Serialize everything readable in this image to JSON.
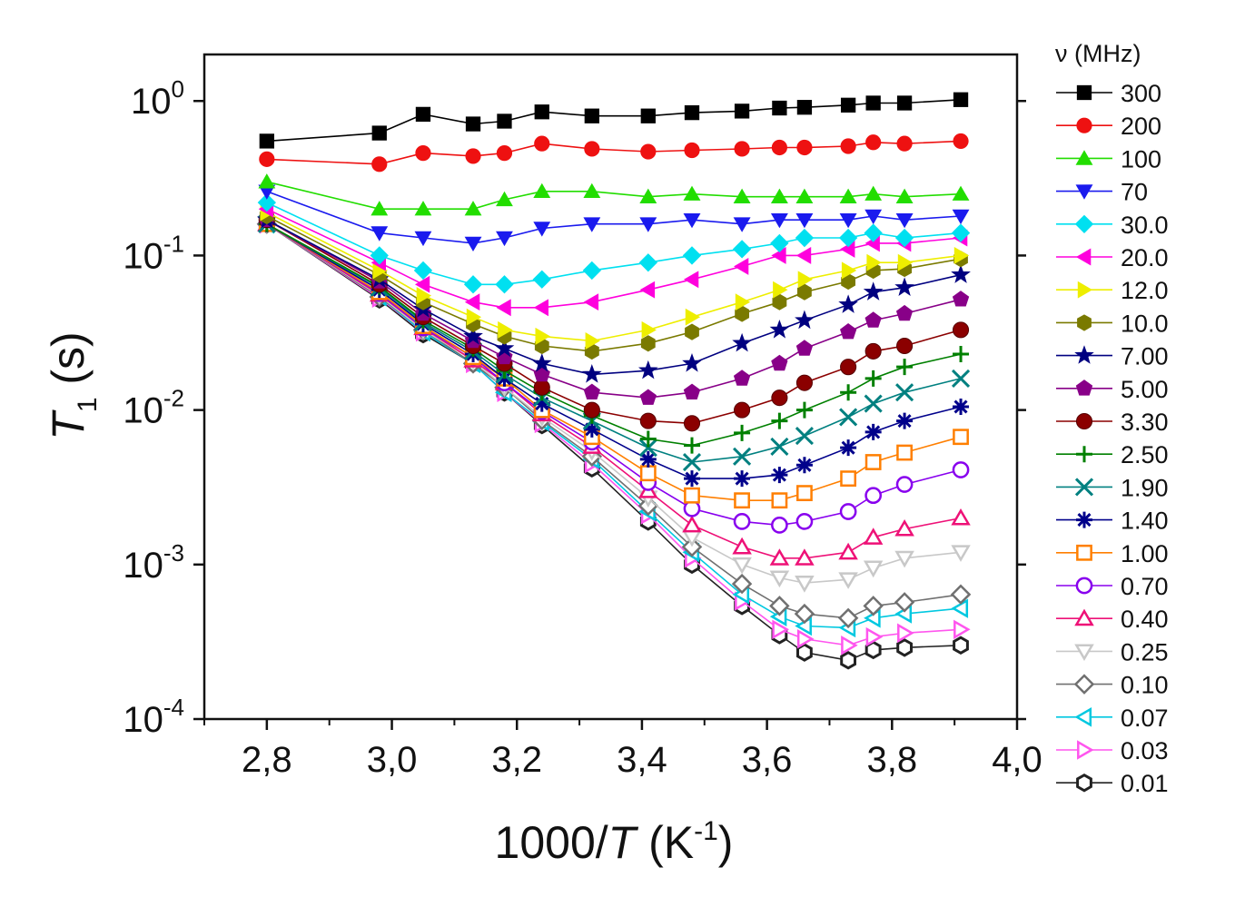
{
  "chart_data": {
    "type": "scatter",
    "xlabel": {
      "main": "1000/",
      "italic": "T",
      "unit_pre": " (K",
      "unit_sup": "-1",
      "unit_post": ")"
    },
    "ylabel": {
      "italic": "T",
      "sub": "1",
      "unit": " (s)"
    },
    "xlim": [
      2.7,
      4.0
    ],
    "ylim": [
      0.0001,
      2
    ],
    "yscale": "log",
    "grid": false,
    "legend_position": "right",
    "legend_title": "ν (MHz)",
    "x_ticks": [
      "2,8",
      "3,0",
      "3,2",
      "3,4",
      "3,6",
      "3,8",
      "4,0"
    ],
    "x_tick_values": [
      2.8,
      3.0,
      3.2,
      3.4,
      3.6,
      3.8,
      4.0
    ],
    "y_ticks": [
      {
        "value": 1,
        "base": "10",
        "exp": "0"
      },
      {
        "value": 0.1,
        "base": "10",
        "exp": "-1"
      },
      {
        "value": 0.01,
        "base": "10",
        "exp": "-2"
      },
      {
        "value": 0.001,
        "base": "10",
        "exp": "-3"
      },
      {
        "value": 0.0001,
        "base": "10",
        "exp": "-4"
      }
    ],
    "x": [
      2.8,
      2.98,
      3.05,
      3.13,
      3.18,
      3.24,
      3.32,
      3.41,
      3.48,
      3.56,
      3.62,
      3.66,
      3.73,
      3.77,
      3.82,
      3.91
    ],
    "series": [
      {
        "name": "300",
        "color": "#000000",
        "marker": "square-filled",
        "values": [
          0.55,
          0.62,
          0.82,
          0.71,
          0.74,
          0.85,
          0.8,
          0.8,
          0.84,
          0.86,
          0.9,
          0.91,
          0.94,
          0.97,
          0.97,
          1.02
        ]
      },
      {
        "name": "200",
        "color": "#ee1111",
        "marker": "circle-filled",
        "values": [
          0.42,
          0.39,
          0.46,
          0.44,
          0.46,
          0.53,
          0.49,
          0.47,
          0.48,
          0.49,
          0.5,
          0.5,
          0.51,
          0.54,
          0.53,
          0.55
        ]
      },
      {
        "name": "100",
        "color": "#22dd00",
        "marker": "triangle-up-filled",
        "values": [
          0.3,
          0.2,
          0.2,
          0.2,
          0.23,
          0.26,
          0.26,
          0.24,
          0.25,
          0.24,
          0.24,
          0.24,
          0.24,
          0.25,
          0.24,
          0.25
        ]
      },
      {
        "name": "70",
        "color": "#1a1aee",
        "marker": "triangle-down-filled",
        "values": [
          0.26,
          0.14,
          0.13,
          0.12,
          0.13,
          0.15,
          0.16,
          0.16,
          0.17,
          0.16,
          0.17,
          0.17,
          0.17,
          0.18,
          0.17,
          0.18
        ]
      },
      {
        "name": "30.0",
        "color": "#00e0f0",
        "marker": "diamond-filled",
        "values": [
          0.22,
          0.1,
          0.08,
          0.065,
          0.065,
          0.07,
          0.08,
          0.09,
          0.1,
          0.11,
          0.12,
          0.13,
          0.13,
          0.14,
          0.13,
          0.14
        ]
      },
      {
        "name": "20.0",
        "color": "#ff00dd",
        "marker": "triangle-left-filled",
        "values": [
          0.2,
          0.09,
          0.065,
          0.05,
          0.046,
          0.046,
          0.05,
          0.06,
          0.07,
          0.085,
          0.1,
          0.1,
          0.11,
          0.12,
          0.12,
          0.13
        ]
      },
      {
        "name": "12.0",
        "color": "#eeee00",
        "marker": "triangle-right-filled",
        "values": [
          0.19,
          0.08,
          0.055,
          0.04,
          0.033,
          0.03,
          0.028,
          0.033,
          0.04,
          0.05,
          0.06,
          0.07,
          0.08,
          0.09,
          0.09,
          0.1
        ]
      },
      {
        "name": "10.0",
        "color": "#7a7a00",
        "marker": "hexagon-filled",
        "values": [
          0.18,
          0.075,
          0.05,
          0.036,
          0.03,
          0.026,
          0.024,
          0.027,
          0.032,
          0.042,
          0.05,
          0.058,
          0.068,
          0.08,
          0.082,
          0.095
        ]
      },
      {
        "name": "7.00",
        "color": "#000080",
        "marker": "star-filled",
        "values": [
          0.17,
          0.07,
          0.045,
          0.03,
          0.025,
          0.02,
          0.017,
          0.018,
          0.02,
          0.027,
          0.033,
          0.038,
          0.048,
          0.058,
          0.062,
          0.075
        ]
      },
      {
        "name": "5.00",
        "color": "#880088",
        "marker": "pentagon-filled",
        "values": [
          0.17,
          0.068,
          0.042,
          0.028,
          0.022,
          0.017,
          0.013,
          0.012,
          0.013,
          0.016,
          0.02,
          0.025,
          0.032,
          0.038,
          0.042,
          0.052
        ]
      },
      {
        "name": "3.30",
        "color": "#8b0000",
        "marker": "ball-filled",
        "values": [
          0.17,
          0.065,
          0.04,
          0.026,
          0.02,
          0.014,
          0.01,
          0.0085,
          0.0082,
          0.01,
          0.012,
          0.015,
          0.019,
          0.024,
          0.026,
          0.033
        ]
      },
      {
        "name": "2.50",
        "color": "#008000",
        "marker": "plus",
        "values": [
          0.16,
          0.063,
          0.038,
          0.025,
          0.018,
          0.013,
          0.0092,
          0.0065,
          0.0059,
          0.0071,
          0.0085,
          0.01,
          0.013,
          0.016,
          0.019,
          0.023
        ]
      },
      {
        "name": "1.90",
        "color": "#008080",
        "marker": "cross",
        "values": [
          0.16,
          0.062,
          0.037,
          0.024,
          0.017,
          0.012,
          0.0085,
          0.0057,
          0.0046,
          0.005,
          0.0058,
          0.0068,
          0.009,
          0.011,
          0.013,
          0.016
        ]
      },
      {
        "name": "1.40",
        "color": "#00008b",
        "marker": "asterisk",
        "values": [
          0.16,
          0.06,
          0.036,
          0.023,
          0.016,
          0.011,
          0.0075,
          0.0048,
          0.0036,
          0.0036,
          0.0038,
          0.0044,
          0.0057,
          0.0072,
          0.0085,
          0.0105
        ]
      },
      {
        "name": "1.00",
        "color": "#ff7f00",
        "marker": "square-open",
        "values": [
          0.16,
          0.058,
          0.035,
          0.022,
          0.016,
          0.01,
          0.0067,
          0.0039,
          0.0028,
          0.0026,
          0.0026,
          0.0029,
          0.0036,
          0.0046,
          0.0053,
          0.0067
        ]
      },
      {
        "name": "0.70",
        "color": "#8800ee",
        "marker": "circle-open",
        "values": [
          0.16,
          0.057,
          0.034,
          0.022,
          0.015,
          0.0098,
          0.0062,
          0.0034,
          0.0023,
          0.0019,
          0.0018,
          0.0019,
          0.0022,
          0.0028,
          0.0033,
          0.0041
        ]
      },
      {
        "name": "0.40",
        "color": "#ee1177",
        "marker": "triangle-up-open",
        "values": [
          0.16,
          0.056,
          0.034,
          0.021,
          0.015,
          0.0094,
          0.0058,
          0.003,
          0.0018,
          0.0013,
          0.0011,
          0.0011,
          0.0012,
          0.0015,
          0.0017,
          0.002
        ]
      },
      {
        "name": "0.25",
        "color": "#c8c8c8",
        "marker": "triangle-down-open",
        "values": [
          0.16,
          0.055,
          0.033,
          0.021,
          0.014,
          0.009,
          0.0054,
          0.0027,
          0.0015,
          0.001,
          0.00082,
          0.00076,
          0.0008,
          0.00095,
          0.0011,
          0.0012
        ]
      },
      {
        "name": "0.10",
        "color": "#707070",
        "marker": "diamond-open",
        "values": [
          0.16,
          0.054,
          0.033,
          0.02,
          0.014,
          0.0086,
          0.005,
          0.0024,
          0.0013,
          0.00075,
          0.00054,
          0.00048,
          0.00045,
          0.00054,
          0.00057,
          0.00064
        ]
      },
      {
        "name": "0.07",
        "color": "#00c8e0",
        "marker": "triangle-left-open",
        "values": [
          0.16,
          0.054,
          0.032,
          0.02,
          0.013,
          0.0084,
          0.0048,
          0.0022,
          0.0012,
          0.00064,
          0.00046,
          0.0004,
          0.00039,
          0.00045,
          0.00048,
          0.00052
        ]
      },
      {
        "name": "0.03",
        "color": "#ff55ee",
        "marker": "triangle-right-open",
        "values": [
          0.16,
          0.053,
          0.032,
          0.02,
          0.013,
          0.0082,
          0.0045,
          0.0021,
          0.0011,
          0.00058,
          0.00038,
          0.00033,
          0.0003,
          0.00034,
          0.00036,
          0.00038
        ]
      },
      {
        "name": "0.01",
        "color": "#222222",
        "marker": "hexagon-open",
        "values": [
          0.16,
          0.052,
          0.031,
          0.02,
          0.013,
          0.008,
          0.0042,
          0.0019,
          0.001,
          0.00054,
          0.00035,
          0.00027,
          0.00024,
          0.00028,
          0.00029,
          0.0003
        ]
      }
    ]
  }
}
